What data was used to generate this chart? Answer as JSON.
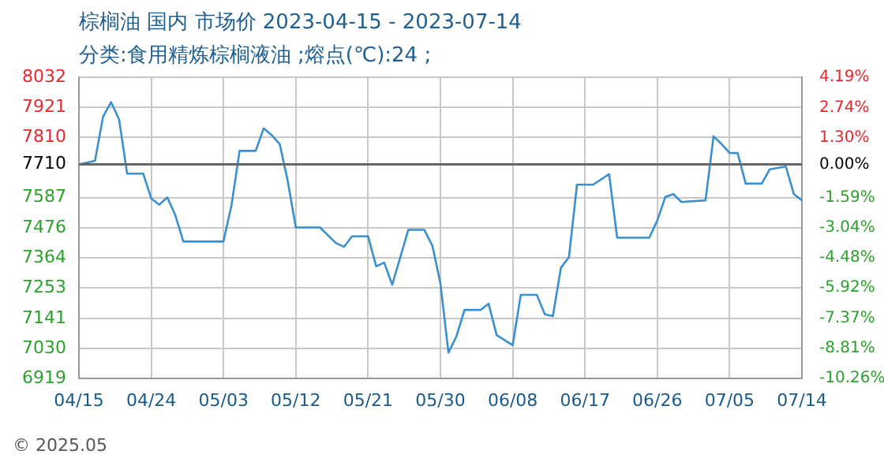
{
  "chart_data": {
    "type": "line",
    "title": "棕榈油 国内 市场价 2023-04-15 - 2023-07-14",
    "subtitle": "分类:食用精炼棕榈液油 ;熔点(℃):24 ;",
    "x": [
      "2023-04-15",
      "2023-04-17",
      "2023-04-18",
      "2023-04-19",
      "2023-04-20",
      "2023-04-21",
      "2023-04-23",
      "2023-04-24",
      "2023-04-25",
      "2023-04-26",
      "2023-04-27",
      "2023-04-28",
      "2023-05-03",
      "2023-05-04",
      "2023-05-05",
      "2023-05-07",
      "2023-05-08",
      "2023-05-09",
      "2023-05-10",
      "2023-05-11",
      "2023-05-12",
      "2023-05-15",
      "2023-05-17",
      "2023-05-18",
      "2023-05-19",
      "2023-05-21",
      "2023-05-22",
      "2023-05-23",
      "2023-05-24",
      "2023-05-26",
      "2023-05-28",
      "2023-05-29",
      "2023-05-30",
      "2023-05-31",
      "2023-06-01",
      "2023-06-02",
      "2023-06-04",
      "2023-06-05",
      "2023-06-06",
      "2023-06-08",
      "2023-06-09",
      "2023-06-11",
      "2023-06-12",
      "2023-06-13",
      "2023-06-14",
      "2023-06-15",
      "2023-06-16",
      "2023-06-18",
      "2023-06-20",
      "2023-06-21",
      "2023-06-25",
      "2023-06-26",
      "2023-06-27",
      "2023-06-28",
      "2023-06-29",
      "2023-07-02",
      "2023-07-03",
      "2023-07-04",
      "2023-07-05",
      "2023-07-06",
      "2023-07-07",
      "2023-07-09",
      "2023-07-10",
      "2023-07-12",
      "2023-07-13",
      "2023-07-14"
    ],
    "series": [
      {
        "color": "#3a8fd0",
        "values": [
          7710,
          7723,
          7886,
          7940,
          7876,
          7676,
          7676,
          7584,
          7561,
          7588,
          7522,
          7425,
          7425,
          7561,
          7760,
          7760,
          7843,
          7818,
          7785,
          7647,
          7477,
          7477,
          7419,
          7405,
          7444,
          7444,
          7333,
          7347,
          7265,
          7468,
          7468,
          7409,
          7270,
          7014,
          7075,
          7172,
          7172,
          7195,
          7079,
          7042,
          7228,
          7228,
          7156,
          7149,
          7328,
          7367,
          7635,
          7635,
          7674,
          7439,
          7439,
          7503,
          7590,
          7600,
          7571,
          7577,
          7814,
          7785,
          7752,
          7752,
          7639,
          7639,
          7692,
          7702,
          7600,
          7577
        ]
      }
    ],
    "xlim": [
      "2023-04-15",
      "2023-07-14"
    ],
    "xticks": [
      {
        "value": "2023-04-15",
        "label": "04/15"
      },
      {
        "value": "2023-04-24",
        "label": "04/24"
      },
      {
        "value": "2023-05-03",
        "label": "05/03"
      },
      {
        "value": "2023-05-12",
        "label": "05/12"
      },
      {
        "value": "2023-05-21",
        "label": "05/21"
      },
      {
        "value": "2023-05-30",
        "label": "05/30"
      },
      {
        "value": "2023-06-08",
        "label": "06/08"
      },
      {
        "value": "2023-06-17",
        "label": "06/17"
      },
      {
        "value": "2023-06-26",
        "label": "06/26"
      },
      {
        "value": "2023-07-05",
        "label": "07/05"
      },
      {
        "value": "2023-07-14",
        "label": "07/14"
      }
    ],
    "ylim": [
      6919,
      8032
    ],
    "yticks": [
      6919,
      7030,
      7141,
      7253,
      7364,
      7476,
      7587,
      7710,
      7810,
      7921,
      8032
    ],
    "y2lim": [
      -10.26,
      4.19
    ],
    "y2ticks": [
      {
        "value": -10.26,
        "label": "-10.26%"
      },
      {
        "value": -8.81,
        "label": "-8.81%"
      },
      {
        "value": -7.37,
        "label": "-7.37%"
      },
      {
        "value": -5.92,
        "label": "-5.92%"
      },
      {
        "value": -4.48,
        "label": "-4.48%"
      },
      {
        "value": -3.04,
        "label": "-3.04%"
      },
      {
        "value": -1.59,
        "label": "-1.59%"
      },
      {
        "value": 0,
        "label": "0.00%"
      },
      {
        "value": 1.3,
        "label": "1.30%"
      },
      {
        "value": 2.74,
        "label": "2.74%"
      },
      {
        "value": 4.19,
        "label": "4.19%"
      }
    ],
    "ref_lines": [
      {
        "axis": "y",
        "value": 7710,
        "color": "#666666"
      }
    ],
    "annotations": [
      "© 2025.05"
    ],
    "grid": true,
    "legend": false,
    "marker": "none",
    "line_style": "solid"
  }
}
